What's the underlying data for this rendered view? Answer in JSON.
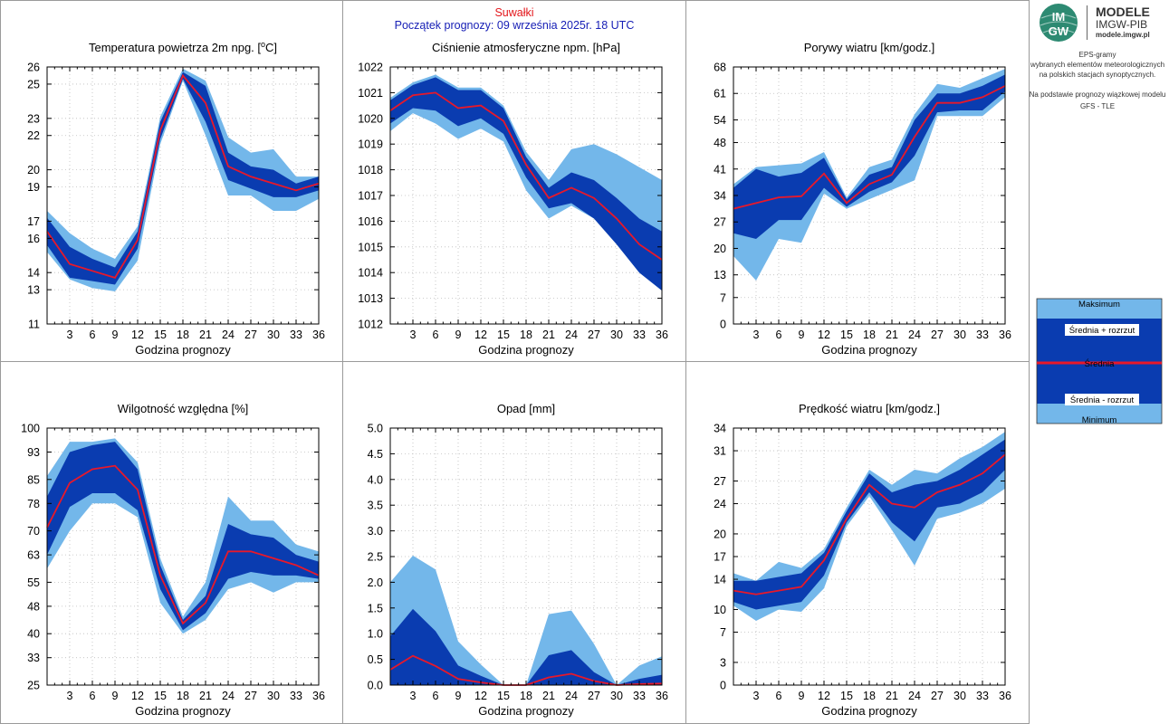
{
  "header": {
    "station": "Suwałki",
    "forecast_start": "Początek prognozy: 09 września 2025r. 18 UTC"
  },
  "logo": {
    "line1": "MODELE",
    "line2": "IMGW-PIB",
    "url": "modele.imgw.pl",
    "badge_top": "IM",
    "badge_bottom": "GW"
  },
  "sidebar": {
    "lines": [
      "EPS-gramy",
      "wybranych elementów meteorologicznych",
      "na polskich stacjach  synoptycznych.",
      "",
      "Na podstawie prognozy wiązkowej modelu",
      "GFS - TLE"
    ]
  },
  "legend": {
    "max": "Maksimum",
    "mean_plus": "Średnia + rozrzut",
    "mean": "Średnia",
    "mean_minus": "Średnia - rozrzut",
    "min": "Minimum"
  },
  "colors": {
    "range": "#73b7ea",
    "spread": "#0a3cb0",
    "mean": "#e8182a",
    "frame": "#000000",
    "station_text": "#e3161b",
    "start_text": "#1820b6"
  },
  "chart_data": [
    {
      "type": "area",
      "title_pre": "Temperatura powietrza 2m npg. [",
      "title_sup": "o",
      "title_post": "C]",
      "xlabel": "Godzina prognozy",
      "x": [
        0,
        3,
        6,
        9,
        12,
        15,
        18,
        21,
        24,
        27,
        30,
        33,
        36
      ],
      "xticks": [
        3,
        6,
        9,
        12,
        15,
        18,
        21,
        24,
        27,
        30,
        33,
        36
      ],
      "ylim": [
        11,
        26
      ],
      "yticks": [
        11,
        13,
        14,
        16,
        17,
        19,
        20,
        22,
        23,
        25,
        26
      ],
      "max": [
        17.6,
        16.3,
        15.4,
        14.8,
        16.7,
        23.1,
        25.9,
        25.2,
        21.9,
        21.0,
        21.2,
        19.6,
        19.6
      ],
      "mean_plus": [
        17.2,
        15.5,
        14.8,
        14.3,
        16.4,
        22.8,
        25.7,
        24.9,
        21.0,
        20.2,
        20.0,
        19.2,
        19.6
      ],
      "mean": [
        16.4,
        14.5,
        14.1,
        13.7,
        15.9,
        22.3,
        25.5,
        23.9,
        20.2,
        19.6,
        19.2,
        18.8,
        19.2
      ],
      "mean_minus": [
        15.6,
        13.7,
        13.5,
        13.3,
        15.4,
        21.8,
        25.3,
        22.8,
        19.4,
        18.9,
        18.4,
        18.4,
        18.8
      ],
      "min": [
        15.2,
        13.6,
        13.1,
        12.9,
        14.7,
        21.5,
        25.2,
        22.0,
        18.5,
        18.5,
        17.6,
        17.6,
        18.3
      ]
    },
    {
      "type": "area",
      "title_pre": "Ciśnienie atmosferyczne npm. [hPa]",
      "title_sup": "",
      "title_post": "",
      "xlabel": "Godzina prognozy",
      "x": [
        0,
        3,
        6,
        9,
        12,
        15,
        18,
        21,
        24,
        27,
        30,
        33,
        36
      ],
      "xticks": [
        3,
        6,
        9,
        12,
        15,
        18,
        21,
        24,
        27,
        30,
        33,
        36
      ],
      "ylim": [
        1012,
        1022
      ],
      "yticks": [
        1012,
        1013,
        1014,
        1015,
        1016,
        1017,
        1018,
        1019,
        1020,
        1021,
        1022
      ],
      "max": [
        1020.8,
        1021.4,
        1021.7,
        1021.2,
        1021.2,
        1020.5,
        1018.7,
        1017.6,
        1018.8,
        1019.0,
        1018.6,
        1018.1,
        1017.6
      ],
      "mean_plus": [
        1020.7,
        1021.3,
        1021.6,
        1021.1,
        1021.1,
        1020.4,
        1018.5,
        1017.3,
        1017.9,
        1017.6,
        1016.9,
        1016.1,
        1015.6
      ],
      "mean": [
        1020.3,
        1020.9,
        1021.0,
        1020.4,
        1020.5,
        1019.9,
        1018.2,
        1016.9,
        1017.3,
        1016.9,
        1016.1,
        1015.1,
        1014.5
      ],
      "mean_minus": [
        1019.8,
        1020.4,
        1020.3,
        1019.7,
        1020.0,
        1019.4,
        1017.7,
        1016.5,
        1016.7,
        1016.1,
        1015.1,
        1014.0,
        1013.3
      ],
      "min": [
        1019.5,
        1020.2,
        1019.8,
        1019.2,
        1019.6,
        1019.1,
        1017.2,
        1016.1,
        1016.6,
        1016.1,
        1015.1,
        1014.0,
        1013.3
      ]
    },
    {
      "type": "area",
      "title_pre": "Porywy wiatru [km/godz.]",
      "title_sup": "",
      "title_post": "",
      "xlabel": "Godzina prognozy",
      "x": [
        0,
        3,
        6,
        9,
        12,
        15,
        18,
        21,
        24,
        27,
        30,
        33,
        36
      ],
      "xticks": [
        3,
        6,
        9,
        12,
        15,
        18,
        21,
        24,
        27,
        30,
        33,
        36
      ],
      "ylim": [
        0,
        68
      ],
      "yticks": [
        0,
        7,
        13,
        20,
        27,
        34,
        41,
        48,
        54,
        61,
        68
      ],
      "max": [
        37.0,
        41.5,
        42.0,
        42.5,
        45.5,
        33.5,
        41.5,
        43.5,
        55.5,
        63.5,
        62.5,
        65.0,
        67.5
      ],
      "mean_plus": [
        36.0,
        41.0,
        39.0,
        40.0,
        44.0,
        33.0,
        39.5,
        41.5,
        54.0,
        61.0,
        61.0,
        63.0,
        66.0
      ],
      "mean": [
        30.5,
        32.0,
        33.5,
        33.8,
        39.8,
        32.0,
        37.0,
        39.5,
        49.5,
        58.5,
        58.5,
        60.0,
        63.0
      ],
      "mean_minus": [
        24.0,
        22.5,
        27.5,
        27.5,
        36.0,
        31.0,
        35.0,
        37.5,
        44.5,
        56.0,
        56.5,
        56.5,
        61.5
      ],
      "min": [
        18.0,
        11.5,
        22.5,
        21.5,
        34.5,
        30.5,
        33.0,
        35.5,
        38.0,
        55.0,
        55.0,
        55.0,
        60.0
      ]
    },
    {
      "type": "area",
      "title_pre": "Wilgotność względna [%]",
      "title_sup": "",
      "title_post": "",
      "xlabel": "Godzina prognozy",
      "x": [
        0,
        3,
        6,
        9,
        12,
        15,
        18,
        21,
        24,
        27,
        30,
        33,
        36
      ],
      "xticks": [
        3,
        6,
        9,
        12,
        15,
        18,
        21,
        24,
        27,
        30,
        33,
        36
      ],
      "ylim": [
        25,
        100
      ],
      "yticks": [
        25,
        33,
        40,
        48,
        55,
        63,
        70,
        78,
        85,
        93,
        100
      ],
      "max": [
        86,
        96,
        96,
        97,
        90,
        62,
        45,
        55,
        80,
        73,
        73,
        66,
        64
      ],
      "mean_plus": [
        80,
        93,
        95,
        96,
        88,
        60,
        44,
        51,
        72,
        69,
        68,
        63,
        61
      ],
      "mean": [
        71,
        84,
        88,
        89,
        82,
        57,
        43,
        49,
        64,
        64,
        62,
        60,
        57
      ],
      "mean_minus": [
        63,
        77,
        81,
        81,
        76,
        53,
        41,
        46,
        56,
        58,
        57,
        57,
        56
      ],
      "min": [
        59,
        70,
        78,
        78,
        74,
        49,
        40,
        44,
        53,
        55,
        52,
        55,
        55
      ]
    },
    {
      "type": "area",
      "title_pre": "Opad [mm]",
      "title_sup": "",
      "title_post": "",
      "xlabel": "Godzina prognozy",
      "x": [
        0,
        3,
        6,
        9,
        12,
        15,
        18,
        21,
        24,
        27,
        30,
        33,
        36
      ],
      "xticks": [
        3,
        6,
        9,
        12,
        15,
        18,
        21,
        24,
        27,
        30,
        33,
        36
      ],
      "ylim": [
        0,
        5
      ],
      "yticks": [
        0.0,
        0.5,
        1.0,
        1.5,
        2.0,
        2.5,
        3.0,
        3.5,
        4.0,
        4.5,
        5.0
      ],
      "tick_decimals": 1,
      "max": [
        2.0,
        2.52,
        2.25,
        0.85,
        0.4,
        0.0,
        0.0,
        1.38,
        1.45,
        0.8,
        0.0,
        0.38,
        0.56
      ],
      "mean_plus": [
        0.95,
        1.48,
        1.05,
        0.38,
        0.18,
        0.0,
        0.0,
        0.58,
        0.68,
        0.25,
        0.0,
        0.12,
        0.2
      ],
      "mean": [
        0.3,
        0.57,
        0.37,
        0.12,
        0.05,
        0.0,
        0.0,
        0.15,
        0.22,
        0.08,
        0.0,
        0.02,
        0.03
      ],
      "mean_minus": [
        0.0,
        0.0,
        0.0,
        0.0,
        0.0,
        0.0,
        0.0,
        0.0,
        0.0,
        0.0,
        0.0,
        0.0,
        0.0
      ],
      "min": [
        0.0,
        0.0,
        0.0,
        0.0,
        0.0,
        0.0,
        0.0,
        0.0,
        0.0,
        0.0,
        0.0,
        0.0,
        0.0
      ]
    },
    {
      "type": "area",
      "title_pre": "Prędkość wiatru [km/godz.]",
      "title_sup": "",
      "title_post": "",
      "xlabel": "Godzina prognozy",
      "x": [
        0,
        3,
        6,
        9,
        12,
        15,
        18,
        21,
        24,
        27,
        30,
        33,
        36
      ],
      "xticks": [
        3,
        6,
        9,
        12,
        15,
        18,
        21,
        24,
        27,
        30,
        33,
        36
      ],
      "ylim": [
        0,
        34
      ],
      "yticks": [
        0,
        3,
        7,
        10,
        14,
        17,
        20,
        24,
        27,
        31,
        34
      ],
      "max": [
        14.8,
        13.8,
        16.3,
        15.5,
        18.0,
        23.5,
        28.5,
        26.5,
        28.5,
        28.0,
        30.0,
        31.5,
        33.5
      ],
      "mean_plus": [
        13.8,
        13.8,
        14.3,
        14.8,
        17.5,
        23.0,
        28.0,
        25.5,
        26.5,
        27.0,
        28.5,
        30.5,
        32.5
      ],
      "mean": [
        12.5,
        12.0,
        12.5,
        13.0,
        16.5,
        22.0,
        26.5,
        24.0,
        23.5,
        25.5,
        26.5,
        28.0,
        30.5
      ],
      "mean_minus": [
        11.0,
        10.0,
        10.5,
        11.0,
        14.5,
        21.5,
        25.5,
        21.5,
        19.0,
        23.5,
        24.0,
        25.5,
        28.5
      ],
      "min": [
        10.5,
        8.5,
        10.0,
        9.7,
        12.8,
        21.0,
        25.0,
        20.5,
        15.8,
        22.0,
        22.8,
        24.0,
        26.0
      ]
    }
  ]
}
